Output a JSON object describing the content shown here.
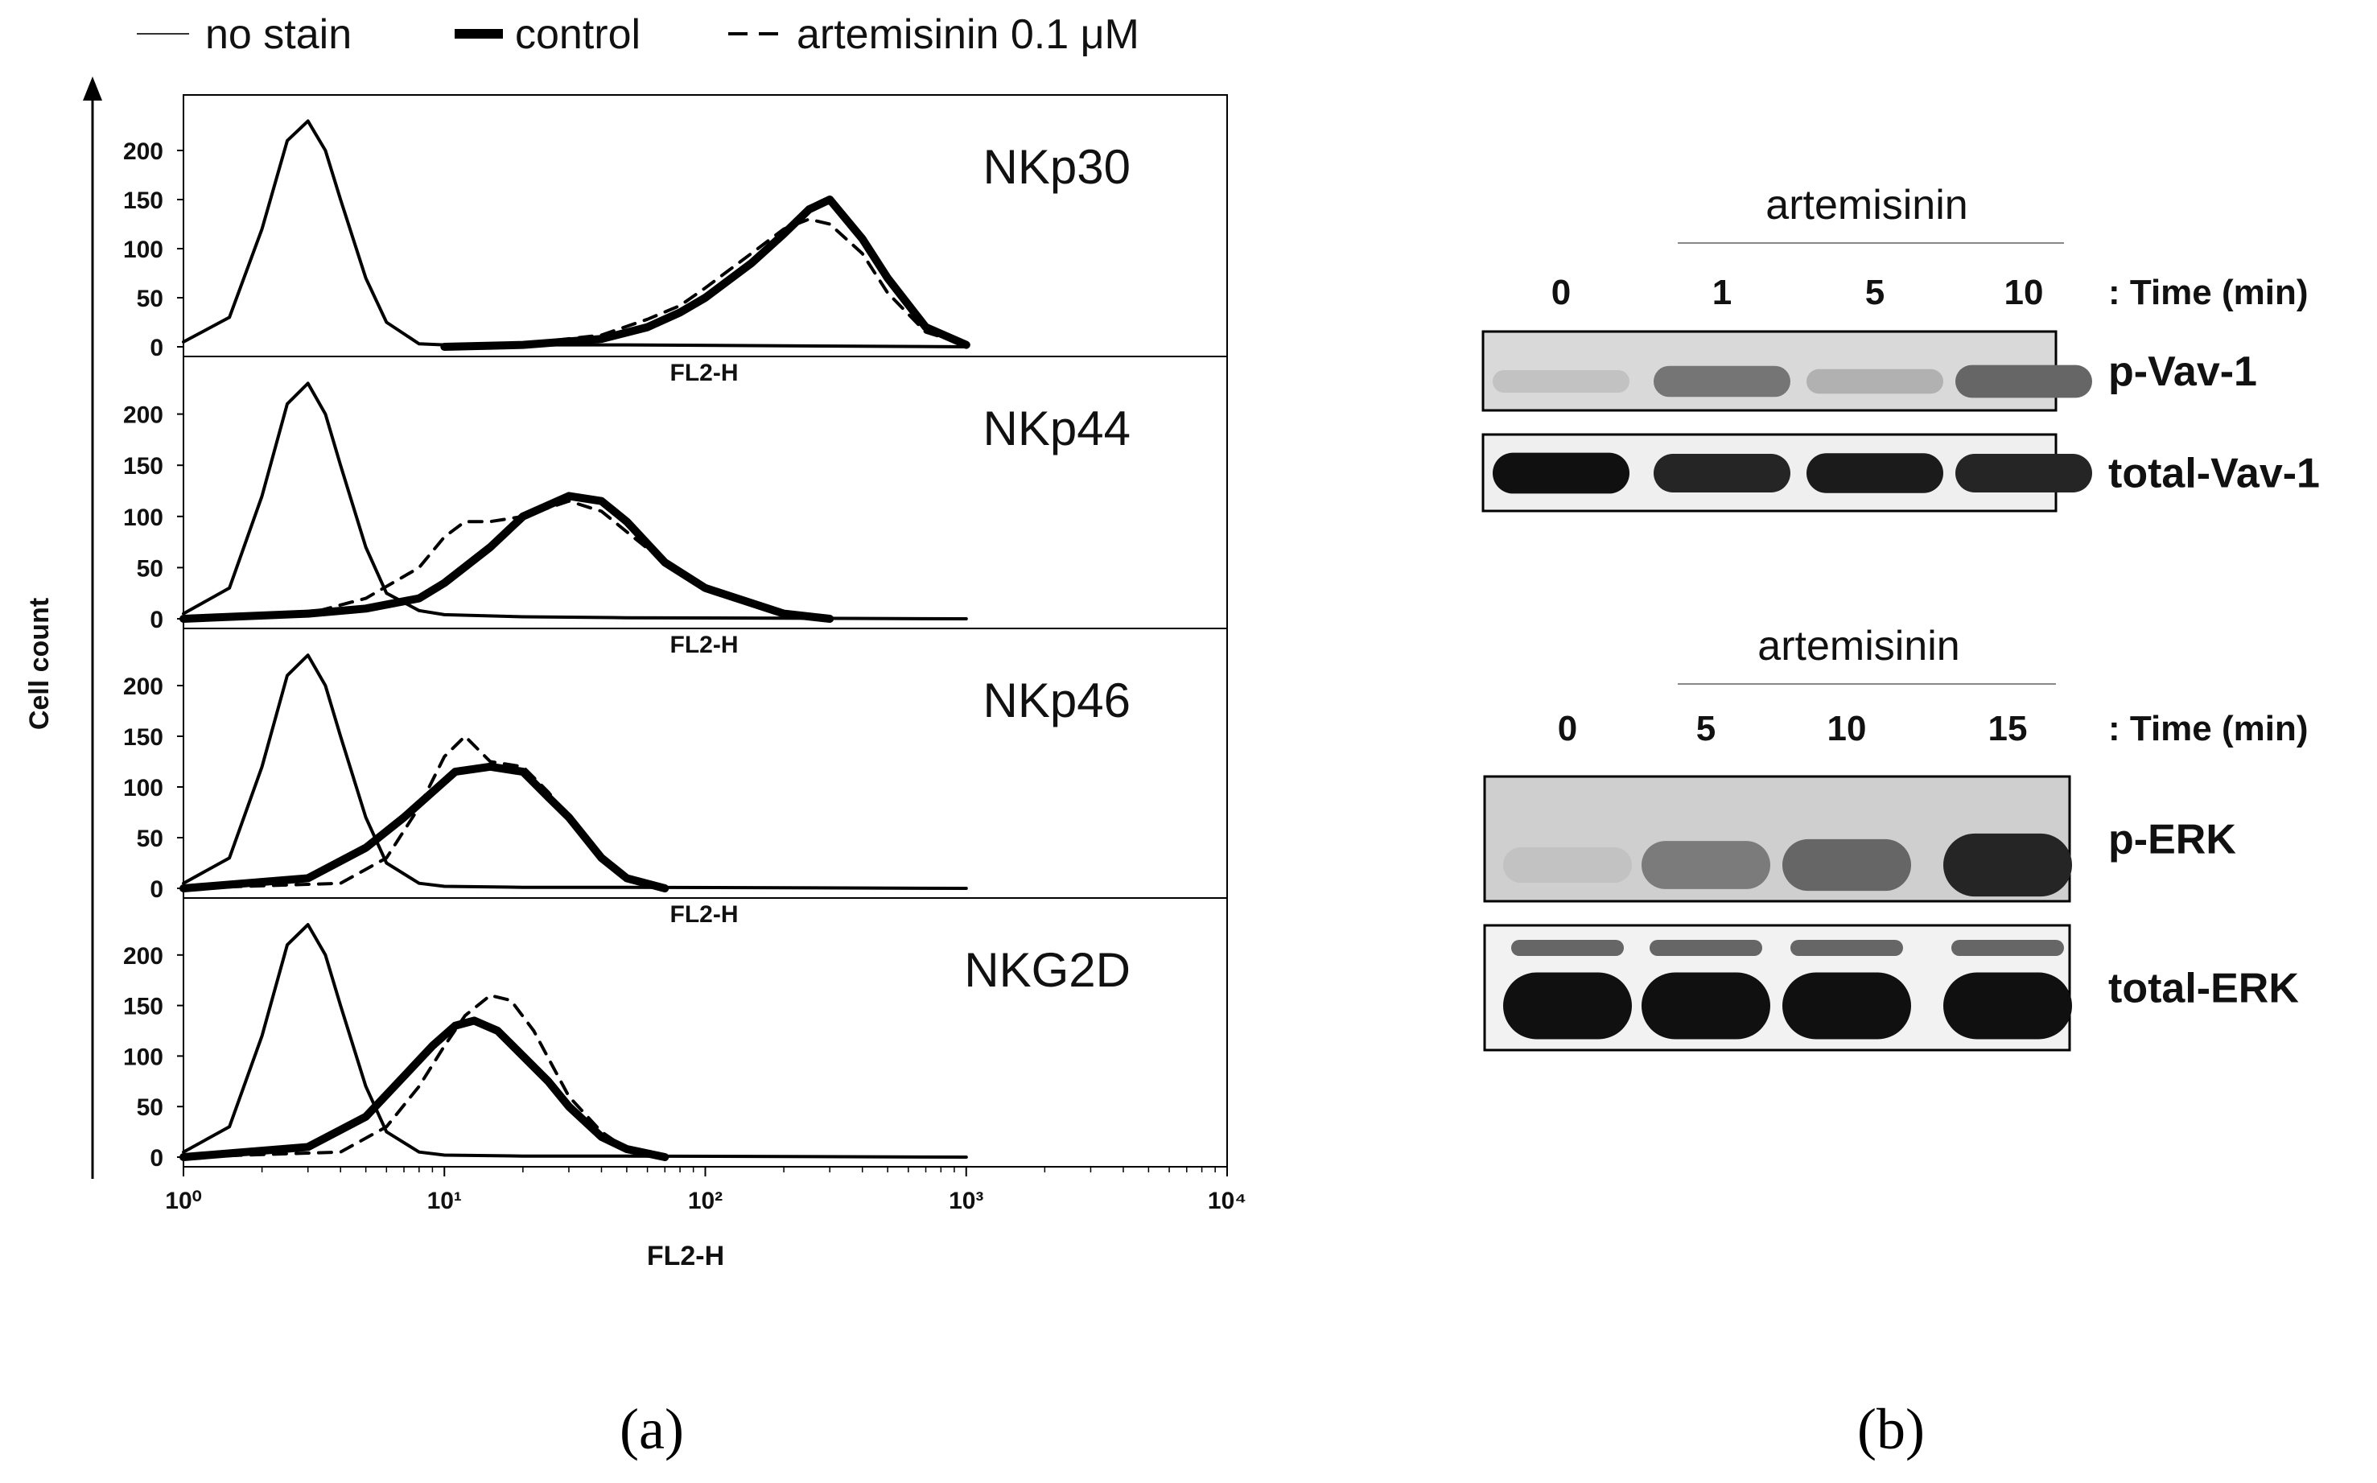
{
  "legend": {
    "entries": [
      {
        "label": "no stain",
        "style": "thin"
      },
      {
        "label": "control",
        "style": "thick"
      },
      {
        "label": "artemisinin 0.1 μM",
        "style": "dashed"
      }
    ]
  },
  "panel_a": {
    "label": "(a)",
    "ylabel": "Cell count",
    "xlabel": "FL2-H",
    "inner_xlabel": "FL2-H",
    "x_ticks": [
      "10⁰",
      "10¹",
      "10²",
      "10³",
      "10⁴"
    ],
    "y_ticks": [
      "0",
      "50",
      "100",
      "150",
      "200"
    ]
  },
  "panel_b": {
    "label": "(b)",
    "blot1": {
      "treatment": "artemisinin",
      "time_label": ": Time (min)",
      "times": [
        "0",
        "1",
        "5",
        "10"
      ],
      "rows": [
        {
          "label": "p-Vav-1",
          "band": [
            0.12,
            0.48,
            0.2,
            0.55
          ]
        },
        {
          "label": "total-Vav-1",
          "band": [
            0.95,
            0.85,
            0.9,
            0.85
          ]
        }
      ]
    },
    "blot2": {
      "treatment": "artemisinin",
      "time_label": ": Time (min)",
      "times": [
        "0",
        "5",
        "10",
        "15"
      ],
      "rows": [
        {
          "label": "p-ERK",
          "band": [
            0.12,
            0.45,
            0.55,
            0.85
          ]
        },
        {
          "label": "total-ERK",
          "band": [
            0.95,
            0.95,
            0.95,
            0.95
          ]
        }
      ]
    }
  },
  "chart_data": [
    {
      "type": "line",
      "xscale": "log",
      "xlim": [
        1,
        10000
      ],
      "ylim": [
        0,
        250
      ],
      "xlabel": "FL2-H",
      "ylabel": "Cell count",
      "panels": [
        {
          "marker": "NKp30",
          "series": [
            {
              "style": "thin",
              "x": [
                1,
                1.5,
                2,
                2.5,
                3,
                3.5,
                4,
                5,
                6,
                8,
                10,
                20,
                50,
                1000
              ],
              "y": [
                5,
                30,
                120,
                210,
                230,
                200,
                150,
                70,
                25,
                3,
                2,
                2,
                2,
                0
              ]
            },
            {
              "style": "thick",
              "x": [
                10,
                20,
                40,
                60,
                80,
                100,
                150,
                200,
                250,
                300,
                400,
                500,
                700,
                1000
              ],
              "y": [
                0,
                2,
                8,
                20,
                35,
                50,
                85,
                115,
                140,
                150,
                110,
                70,
                20,
                2
              ]
            },
            {
              "style": "dashed",
              "x": [
                10,
                20,
                40,
                60,
                80,
                100,
                150,
                200,
                250,
                300,
                400,
                500,
                700,
                1000
              ],
              "y": [
                0,
                3,
                12,
                28,
                42,
                60,
                95,
                120,
                130,
                125,
                95,
                55,
                15,
                2
              ]
            }
          ]
        },
        {
          "marker": "NKp44",
          "series": [
            {
              "style": "thin",
              "x": [
                1,
                1.5,
                2,
                2.5,
                3,
                3.5,
                4,
                5,
                6,
                8,
                10,
                20,
                50,
                1000
              ],
              "y": [
                5,
                30,
                120,
                210,
                230,
                200,
                150,
                70,
                25,
                8,
                4,
                2,
                1,
                0
              ]
            },
            {
              "style": "thick",
              "x": [
                1,
                3,
                5,
                8,
                10,
                15,
                20,
                30,
                40,
                50,
                70,
                100,
                200,
                300
              ],
              "y": [
                0,
                5,
                10,
                20,
                35,
                70,
                100,
                120,
                115,
                95,
                55,
                30,
                5,
                0
              ]
            },
            {
              "style": "dashed",
              "x": [
                1,
                3,
                5,
                8,
                10,
                12,
                15,
                20,
                30,
                40,
                50,
                70,
                100,
                200,
                300
              ],
              "y": [
                0,
                5,
                20,
                50,
                80,
                95,
                95,
                100,
                115,
                105,
                85,
                55,
                30,
                5,
                0
              ]
            }
          ]
        },
        {
          "marker": "NKp46",
          "series": [
            {
              "style": "thin",
              "x": [
                1,
                1.5,
                2,
                2.5,
                3,
                3.5,
                4,
                5,
                6,
                8,
                10,
                20,
                50,
                1000
              ],
              "y": [
                5,
                30,
                120,
                210,
                230,
                200,
                150,
                70,
                25,
                5,
                2,
                1,
                1,
                0
              ]
            },
            {
              "style": "thick",
              "x": [
                1,
                3,
                5,
                7,
                9,
                11,
                15,
                20,
                25,
                30,
                40,
                50,
                70
              ],
              "y": [
                0,
                10,
                40,
                70,
                95,
                115,
                120,
                115,
                90,
                70,
                30,
                10,
                0
              ]
            },
            {
              "style": "dashed",
              "x": [
                1,
                4,
                6,
                8,
                10,
                12,
                15,
                20,
                25,
                30,
                40,
                50,
                70
              ],
              "y": [
                0,
                5,
                30,
                80,
                130,
                150,
                125,
                120,
                95,
                70,
                30,
                10,
                0
              ]
            }
          ]
        },
        {
          "marker": "NKG2D",
          "series": [
            {
              "style": "thin",
              "x": [
                1,
                1.5,
                2,
                2.5,
                3,
                3.5,
                4,
                5,
                6,
                8,
                10,
                20,
                50,
                1000
              ],
              "y": [
                5,
                30,
                120,
                210,
                230,
                200,
                150,
                70,
                25,
                5,
                2,
                1,
                1,
                0
              ]
            },
            {
              "style": "thick",
              "x": [
                1,
                3,
                5,
                7,
                9,
                11,
                13,
                16,
                20,
                25,
                30,
                40,
                50,
                70
              ],
              "y": [
                0,
                10,
                40,
                80,
                110,
                130,
                135,
                125,
                100,
                75,
                50,
                20,
                8,
                0
              ]
            },
            {
              "style": "dashed",
              "x": [
                1,
                4,
                6,
                8,
                10,
                12,
                15,
                18,
                22,
                26,
                30,
                40,
                50,
                70
              ],
              "y": [
                0,
                5,
                30,
                70,
                110,
                140,
                160,
                155,
                125,
                90,
                60,
                25,
                8,
                0
              ]
            }
          ]
        }
      ]
    }
  ]
}
